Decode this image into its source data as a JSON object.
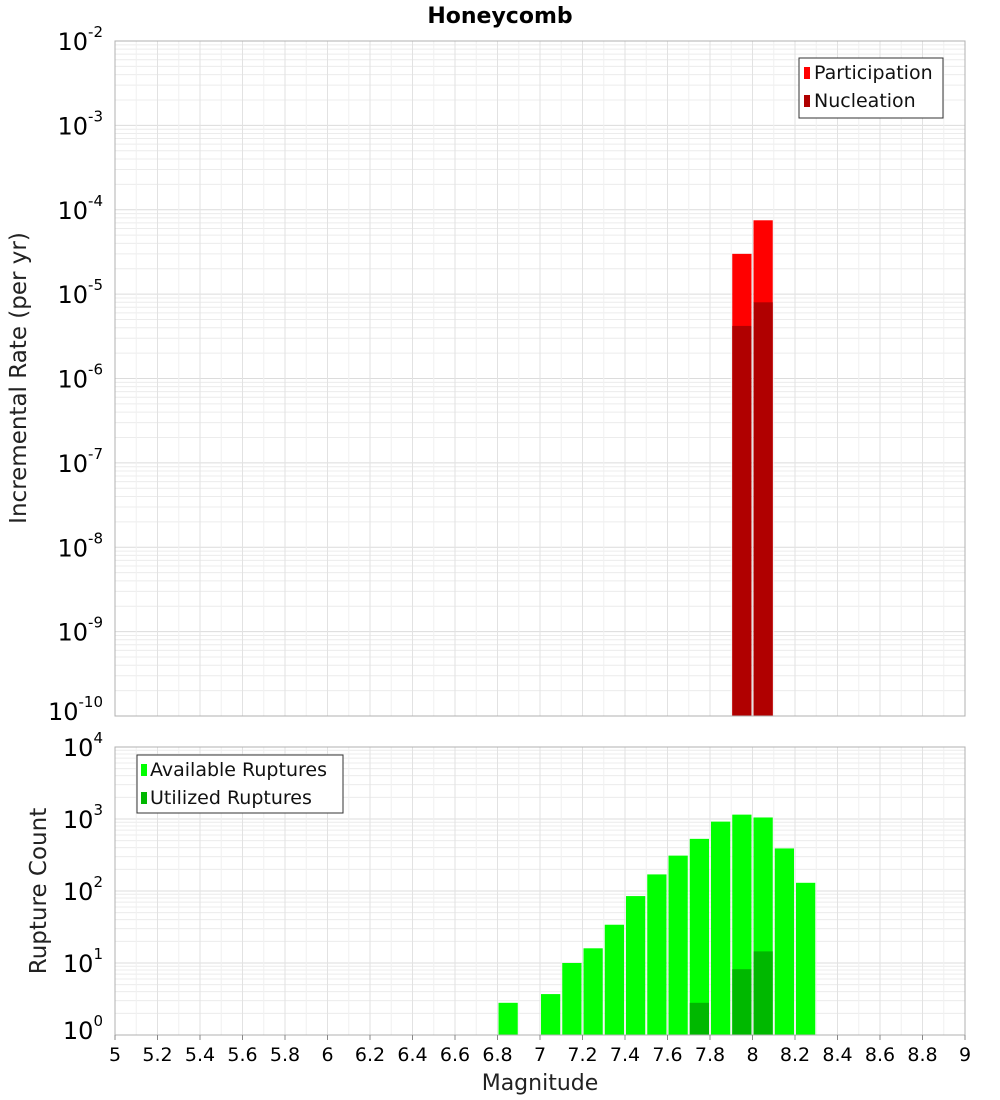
{
  "chart_data": [
    {
      "type": "bar",
      "title": "Honeycomb",
      "xlabel": "Magnitude",
      "ylabel": "Incremental Rate (per yr)",
      "yscale": "log",
      "xlim": [
        5,
        9
      ],
      "ylim": [
        1e-10,
        0.01
      ],
      "grid": true,
      "legend_position": "top-right",
      "bar_width": 0.1,
      "series": [
        {
          "name": "Participation",
          "color": "#ff0000",
          "x": [
            7.95,
            8.05
          ],
          "values": [
            3e-05,
            7.5e-05
          ]
        },
        {
          "name": "Nucleation",
          "color": "#b00000",
          "x": [
            7.95,
            8.05
          ],
          "values": [
            4.2e-06,
            8e-06
          ]
        }
      ]
    },
    {
      "type": "bar",
      "title": "",
      "xlabel": "Magnitude",
      "ylabel": "Rupture Count",
      "yscale": "log",
      "xlim": [
        5,
        9
      ],
      "ylim": [
        1,
        10000
      ],
      "grid": true,
      "legend_position": "top-left",
      "bar_width": 0.1,
      "x_ticks": [
        "5",
        "5.2",
        "5.4",
        "5.6",
        "5.8",
        "6",
        "6.2",
        "6.4",
        "6.6",
        "6.8",
        "7",
        "7.2",
        "7.4",
        "7.6",
        "7.8",
        "8",
        "8.2",
        "8.4",
        "8.6",
        "8.8",
        "9"
      ],
      "series": [
        {
          "name": "Available Ruptures",
          "color": "#00ff00",
          "x": [
            6.85,
            7.05,
            7.15,
            7.25,
            7.35,
            7.45,
            7.55,
            7.65,
            7.75,
            7.85,
            7.95,
            8.05,
            8.15,
            8.25
          ],
          "values": [
            2.8,
            3.7,
            10,
            16,
            34,
            85,
            170,
            310,
            530,
            920,
            1150,
            1050,
            390,
            130
          ]
        },
        {
          "name": "Utilized Ruptures",
          "color": "#00b800",
          "x": [
            7.75,
            7.95,
            8.05
          ],
          "values": [
            2.8,
            8.2,
            14.5
          ]
        }
      ]
    }
  ]
}
